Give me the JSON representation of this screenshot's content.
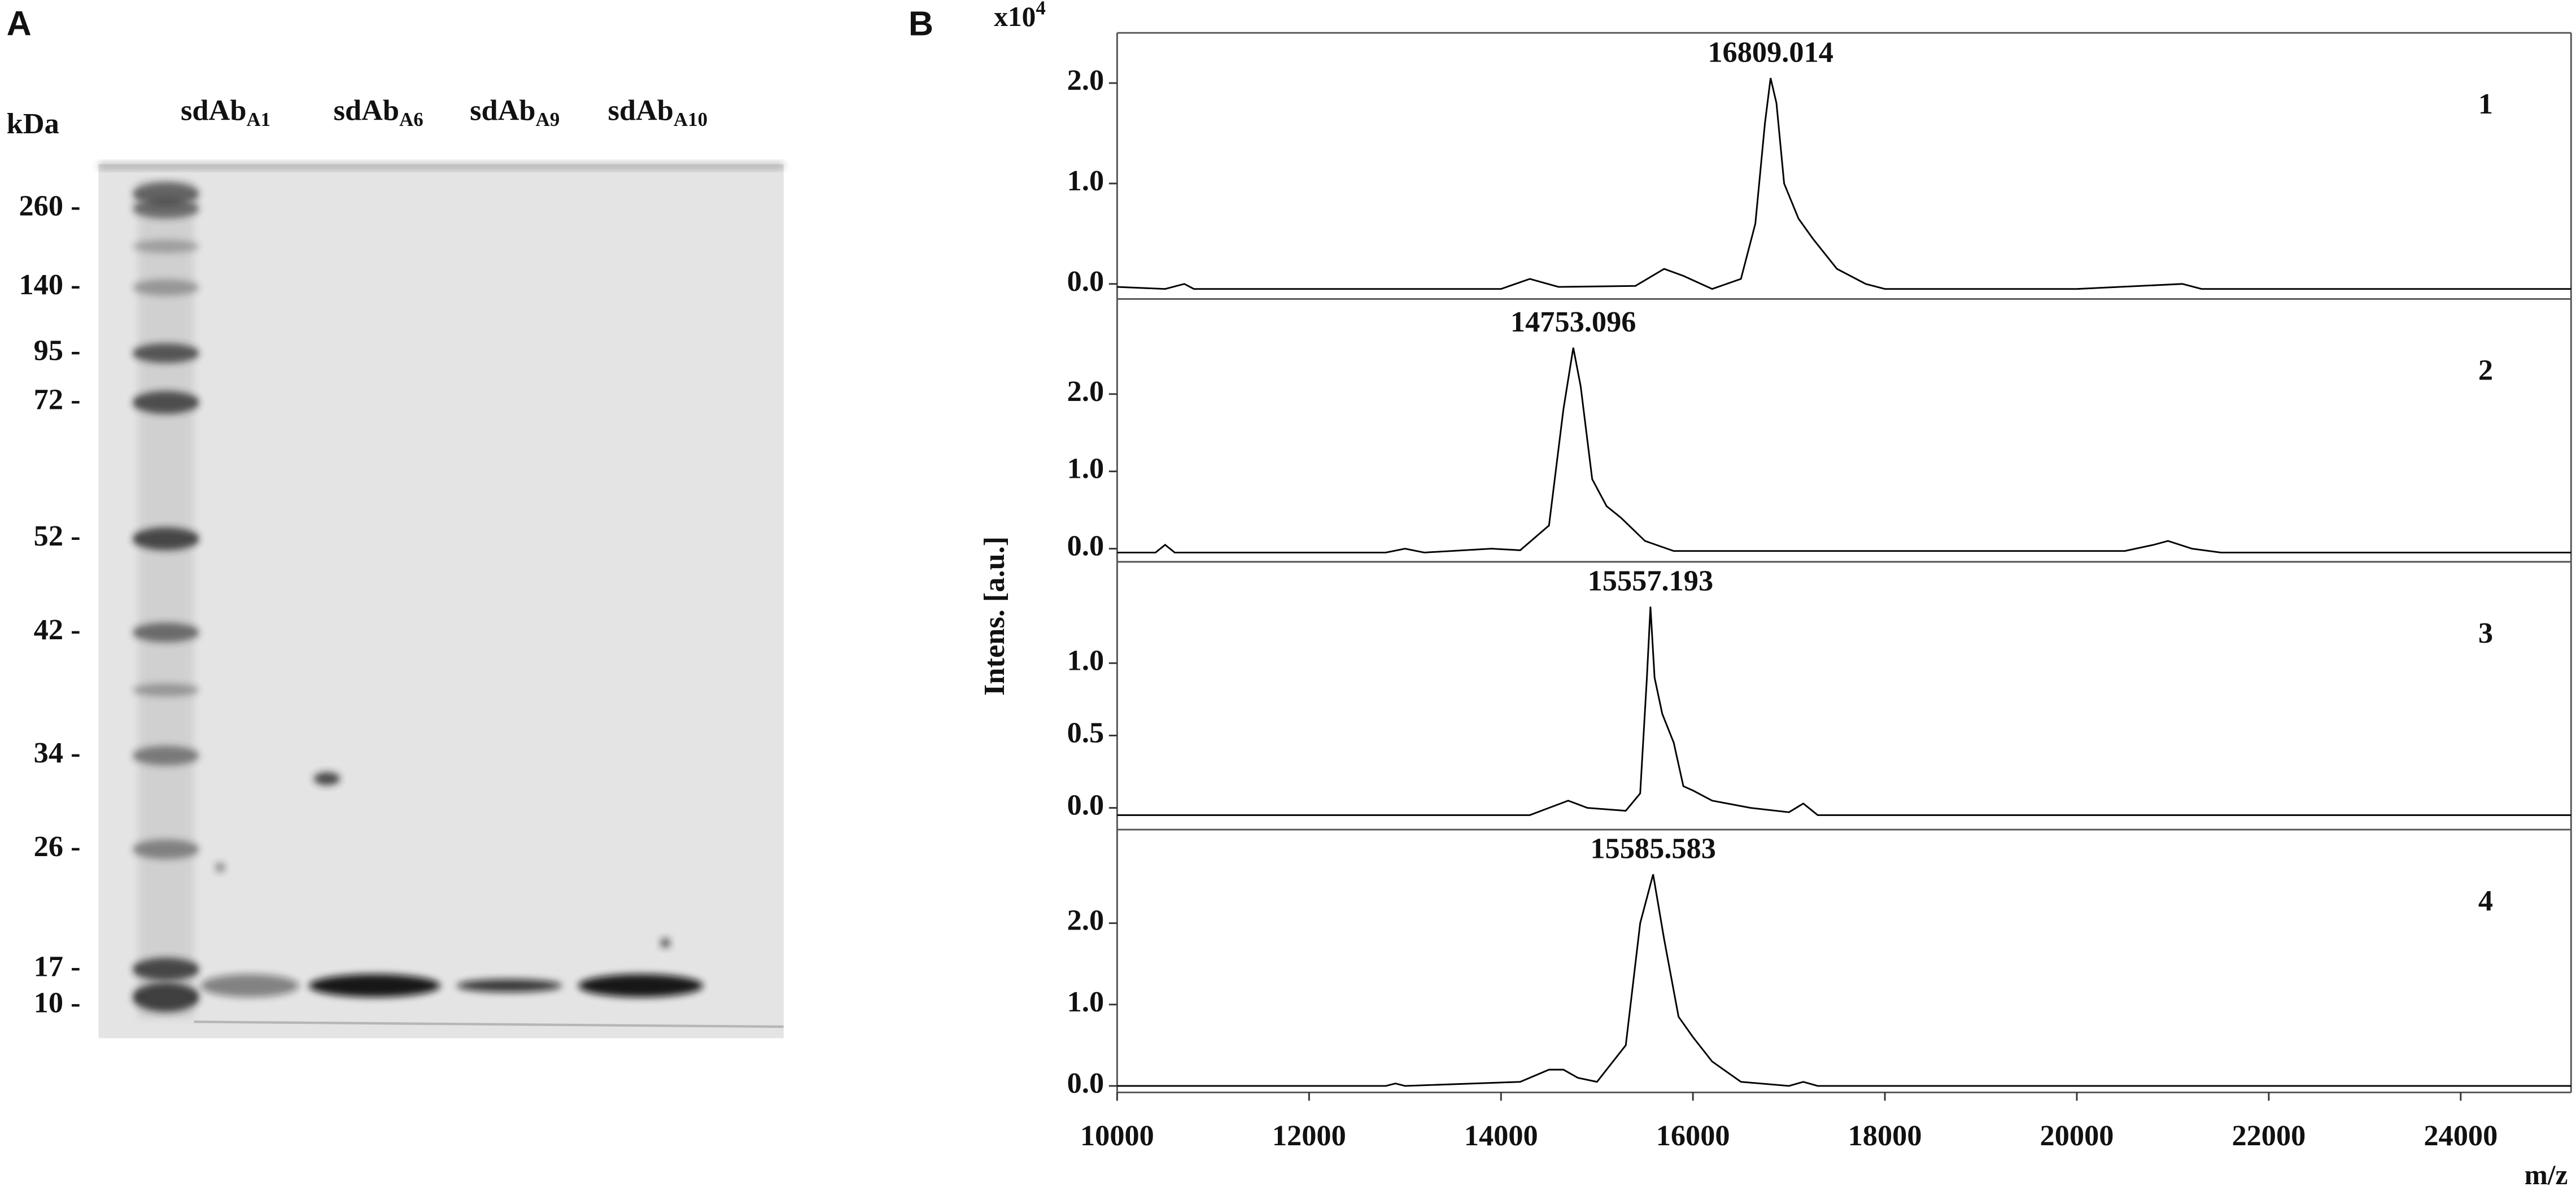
{
  "panel_a": {
    "label": "A",
    "unit": "kDa",
    "markers": [
      "260 -",
      "140 -",
      "95 -",
      "72 -",
      "52 -",
      "42 -",
      "34 -",
      "26 -",
      "17 -",
      "10 -"
    ],
    "lanes": [
      {
        "name": "sdAb",
        "subscript": "A1"
      },
      {
        "name": "sdAb",
        "subscript": "A6"
      },
      {
        "name": "sdAb",
        "subscript": "A9"
      },
      {
        "name": "sdAb",
        "subscript": "A10"
      }
    ]
  },
  "panel_b": {
    "label": "B",
    "ylabel": "Intens. [a.u.]",
    "y_scale": {
      "base": "x10",
      "exponent": "4"
    }
  },
  "chart_data": [
    {
      "type": "line",
      "label": "1",
      "annotation": "16809.014",
      "color": "#000000",
      "x": [
        10000,
        10500,
        10700,
        10800,
        12000,
        14000,
        14300,
        14600,
        15400,
        15700,
        15900,
        16200,
        16500,
        16650,
        16750,
        16809,
        16870,
        16950,
        17100,
        17250,
        17500,
        17800,
        18000,
        20000,
        21100,
        21300,
        25150
      ],
      "values": [
        -0.03,
        -0.05,
        0.0,
        -0.05,
        -0.05,
        -0.05,
        0.05,
        -0.03,
        -0.02,
        0.15,
        0.08,
        -0.05,
        0.05,
        0.6,
        1.6,
        2.05,
        1.8,
        1.0,
        0.65,
        0.45,
        0.15,
        0.0,
        -0.05,
        -0.05,
        0.0,
        -0.05,
        -0.05
      ],
      "xlim": [
        10000,
        25150
      ],
      "ylim": [
        -0.15,
        2.5
      ],
      "yticks": [
        {
          "value": 0,
          "label": "0.0"
        },
        {
          "value": 1,
          "label": "1.0"
        },
        {
          "value": 2,
          "label": "2.0"
        }
      ]
    },
    {
      "type": "line",
      "label": "2",
      "annotation": "14753.096",
      "color": "#000000",
      "x": [
        10000,
        10400,
        10500,
        10600,
        12800,
        13000,
        13200,
        13900,
        14200,
        14500,
        14650,
        14753,
        14830,
        14950,
        15100,
        15250,
        15500,
        15800,
        20500,
        20800,
        20950,
        21200,
        21500,
        25150
      ],
      "values": [
        -0.05,
        -0.05,
        0.05,
        -0.05,
        -0.05,
        0.0,
        -0.05,
        0.0,
        -0.02,
        0.3,
        1.8,
        2.6,
        2.1,
        0.9,
        0.55,
        0.4,
        0.1,
        -0.03,
        -0.03,
        0.05,
        0.1,
        0.0,
        -0.05,
        -0.05
      ],
      "xlim": [
        10000,
        25150
      ],
      "ylim": [
        -0.17,
        3.23
      ],
      "yticks": [
        {
          "value": 0,
          "label": "0.0"
        },
        {
          "value": 1,
          "label": "1.0"
        },
        {
          "value": 2,
          "label": "2.0"
        }
      ]
    },
    {
      "type": "line",
      "label": "3",
      "annotation": "15557.193",
      "color": "#000000",
      "x": [
        10000,
        14300,
        14500,
        14700,
        14900,
        15300,
        15450,
        15520,
        15557,
        15600,
        15680,
        15800,
        15900,
        16000,
        16200,
        16600,
        17000,
        17150,
        17300,
        25150
      ],
      "values": [
        -0.05,
        -0.05,
        0.0,
        0.05,
        0.0,
        -0.02,
        0.1,
        0.9,
        1.39,
        0.9,
        0.65,
        0.45,
        0.15,
        0.12,
        0.05,
        0.0,
        -0.03,
        0.03,
        -0.05,
        -0.05
      ],
      "xlim": [
        10000,
        25150
      ],
      "ylim": [
        -0.15,
        1.7
      ],
      "yticks": [
        {
          "value": 0,
          "label": "0.0"
        },
        0.5,
        {
          "value": 1,
          "label": "1.0"
        }
      ]
    },
    {
      "type": "line",
      "label": "4",
      "annotation": "15585.583",
      "color": "#000000",
      "x": [
        10000,
        12800,
        12900,
        13000,
        14200,
        14500,
        14650,
        14800,
        15000,
        15300,
        15450,
        15585,
        15700,
        15850,
        16000,
        16200,
        16500,
        17000,
        17150,
        17300,
        25150
      ],
      "values": [
        0.0,
        0.0,
        0.03,
        0.0,
        0.05,
        0.2,
        0.2,
        0.1,
        0.05,
        0.5,
        2.0,
        2.6,
        1.8,
        0.85,
        0.6,
        0.3,
        0.05,
        0.0,
        0.05,
        0.0,
        0.0
      ],
      "xlim": [
        10000,
        25150
      ],
      "ylim": [
        -0.08,
        3.15
      ],
      "yticks": [
        {
          "value": 0,
          "label": "0.0"
        },
        {
          "value": 1,
          "label": "1.0"
        },
        {
          "value": 2,
          "label": "2.0"
        }
      ],
      "xticks": [
        10000,
        12000,
        14000,
        16000,
        18000,
        20000,
        22000,
        24000
      ],
      "xlabel": "m/z"
    }
  ]
}
